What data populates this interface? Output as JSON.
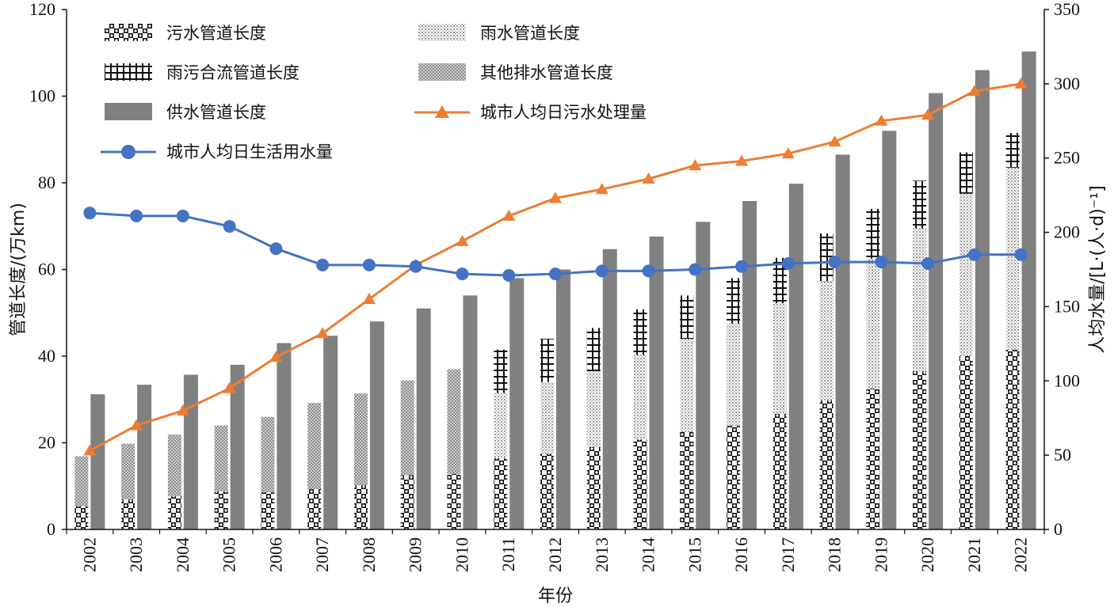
{
  "chart_data": {
    "type": "bar",
    "categories": [
      "2002",
      "2003",
      "2004",
      "2005",
      "2006",
      "2007",
      "2008",
      "2009",
      "2010",
      "2011",
      "2012",
      "2013",
      "2014",
      "2015",
      "2016",
      "2017",
      "2018",
      "2019",
      "2020",
      "2021",
      "2022"
    ],
    "xlabel": "年份",
    "ylabel_left": "管道长度/(万km)",
    "ylabel_right": "人均水量/[L·(人·d)⁻¹]",
    "ylim_left": [
      0,
      120
    ],
    "ylim_right": [
      0,
      350
    ],
    "yticks_left": [
      "0",
      "20",
      "40",
      "60",
      "80",
      "100",
      "120"
    ],
    "yticks_right": [
      "0",
      "50",
      "100",
      "150",
      "200",
      "250",
      "300",
      "350"
    ],
    "stacked_series": [
      {
        "name": "污水管道长度",
        "pattern": "checker",
        "values": [
          5.4,
          6.9,
          7.7,
          8.8,
          8.6,
          9.3,
          10.2,
          12.5,
          12.8,
          16.5,
          17.5,
          19.0,
          20.8,
          22.5,
          24.0,
          26.7,
          29.8,
          32.5,
          36.5,
          40.0,
          41.5
        ]
      },
      {
        "name": "雨水管道长度",
        "pattern": "dots",
        "values": [
          0,
          0,
          0,
          0,
          0,
          0,
          0,
          0,
          0,
          15.0,
          16.5,
          17.5,
          19.5,
          21.5,
          23.5,
          25.5,
          27.5,
          30.0,
          33.0,
          37.5,
          42.0
        ]
      },
      {
        "name": "雨污合流管道长度",
        "pattern": "grid",
        "values": [
          0,
          0,
          0,
          0,
          0,
          0,
          0,
          0,
          0,
          10.0,
          10.0,
          10.0,
          10.5,
          10.0,
          10.5,
          10.5,
          11.0,
          11.5,
          11.0,
          9.5,
          8.0
        ]
      },
      {
        "name": "其他排水管道长度",
        "pattern": "crosshatch",
        "values": [
          11.5,
          12.9,
          14.2,
          15.2,
          17.4,
          19.9,
          21.2,
          21.9,
          24.2,
          0,
          0,
          0,
          0,
          0,
          0,
          0,
          0,
          0,
          0,
          0,
          0
        ]
      }
    ],
    "bar_series": {
      "name": "供水管道长度",
      "color": "#808080",
      "values": [
        31.2,
        33.4,
        35.7,
        38.0,
        43.0,
        44.7,
        48.0,
        51.0,
        54.0,
        58.0,
        60.0,
        64.7,
        67.6,
        71.0,
        75.8,
        79.8,
        86.5,
        92.0,
        100.7,
        106.0,
        110.3
      ]
    },
    "line_series": [
      {
        "name": "城市人均日污水处理量",
        "axis": "right",
        "marker": "triangle",
        "color": "#ED7D31",
        "values": [
          53,
          70,
          80,
          95,
          116,
          132,
          155,
          178,
          194,
          211,
          223,
          229,
          236,
          245,
          248,
          253,
          261,
          275,
          279,
          295,
          300
        ]
      },
      {
        "name": "城市人均日生活用水量",
        "axis": "right",
        "marker": "circle",
        "color": "#4472C4",
        "values": [
          213,
          211,
          211,
          204,
          189,
          178,
          178,
          177,
          172,
          171,
          172,
          174,
          174,
          175,
          177,
          179,
          180,
          180,
          179,
          185,
          185
        ]
      }
    ],
    "legend": [
      {
        "label": "污水管道长度",
        "kind": "checker"
      },
      {
        "label": "雨水管道长度",
        "kind": "dots"
      },
      {
        "label": "雨污合流管道长度",
        "kind": "grid"
      },
      {
        "label": "其他排水管道长度",
        "kind": "crosshatch"
      },
      {
        "label": "供水管道长度",
        "kind": "gray"
      },
      {
        "label": "城市人均日污水处理量",
        "kind": "orange-line"
      },
      {
        "label": "城市人均日生活用水量",
        "kind": "blue-line"
      }
    ]
  }
}
